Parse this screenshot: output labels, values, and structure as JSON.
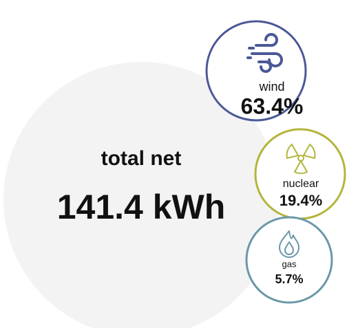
{
  "card": {
    "total": {
      "label": "total net",
      "value": "141.4 kWh"
    },
    "sources": [
      {
        "label": "wind",
        "value": "63.4%"
      },
      {
        "label": "nuclear",
        "value": "19.4%"
      },
      {
        "label": "gas",
        "value": "5.7%"
      }
    ]
  }
}
